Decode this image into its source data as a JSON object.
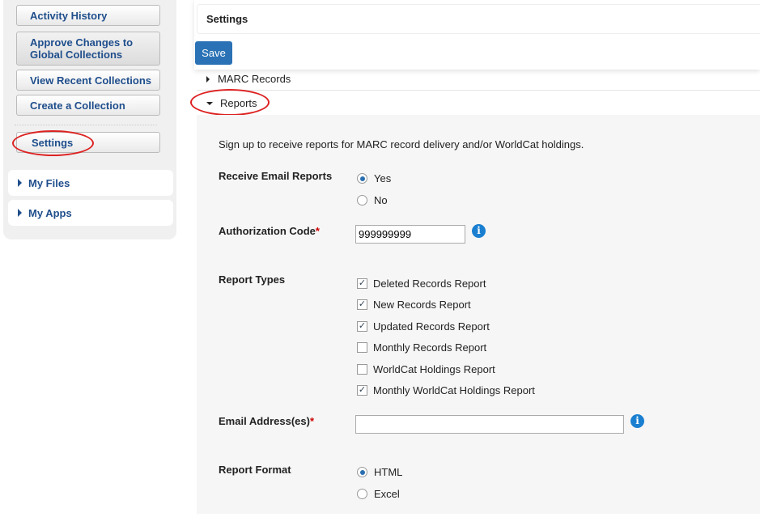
{
  "sidebar": {
    "buttons": [
      "Activity History",
      "Approve Changes to Global Collections",
      "View Recent Collections",
      "Create a Collection",
      "Settings"
    ],
    "accordions": [
      "My Files",
      "My Apps"
    ]
  },
  "header": {
    "title": "Settings",
    "save_label": "Save"
  },
  "sections": {
    "marc": "MARC Records",
    "reports": "Reports"
  },
  "form": {
    "intro": "Sign up to receive reports for MARC record delivery and/or WorldCat holdings.",
    "receive_label": "Receive Email Reports",
    "receive_options": [
      "Yes",
      "No"
    ],
    "receive_selected": "Yes",
    "auth_label": "Authorization Code",
    "auth_value": "999999999",
    "required_mark": "*",
    "types_label": "Report Types",
    "types": [
      {
        "label": "Deleted Records Report",
        "checked": true
      },
      {
        "label": "New Records Report",
        "checked": true
      },
      {
        "label": "Updated Records Report",
        "checked": true
      },
      {
        "label": "Monthly Records Report",
        "checked": false
      },
      {
        "label": "WorldCat Holdings Report",
        "checked": false
      },
      {
        "label": "Monthly WorldCat Holdings Report",
        "checked": true
      }
    ],
    "email_label": "Email Address(es)",
    "email_value": "",
    "format_label": "Report Format",
    "format_options": [
      "HTML",
      "Excel"
    ],
    "format_selected": "HTML"
  },
  "colors": {
    "accent": "#2a72b5",
    "link": "#1f4e8c",
    "annotation": "#dd2222",
    "info": "#1a7fd0"
  }
}
